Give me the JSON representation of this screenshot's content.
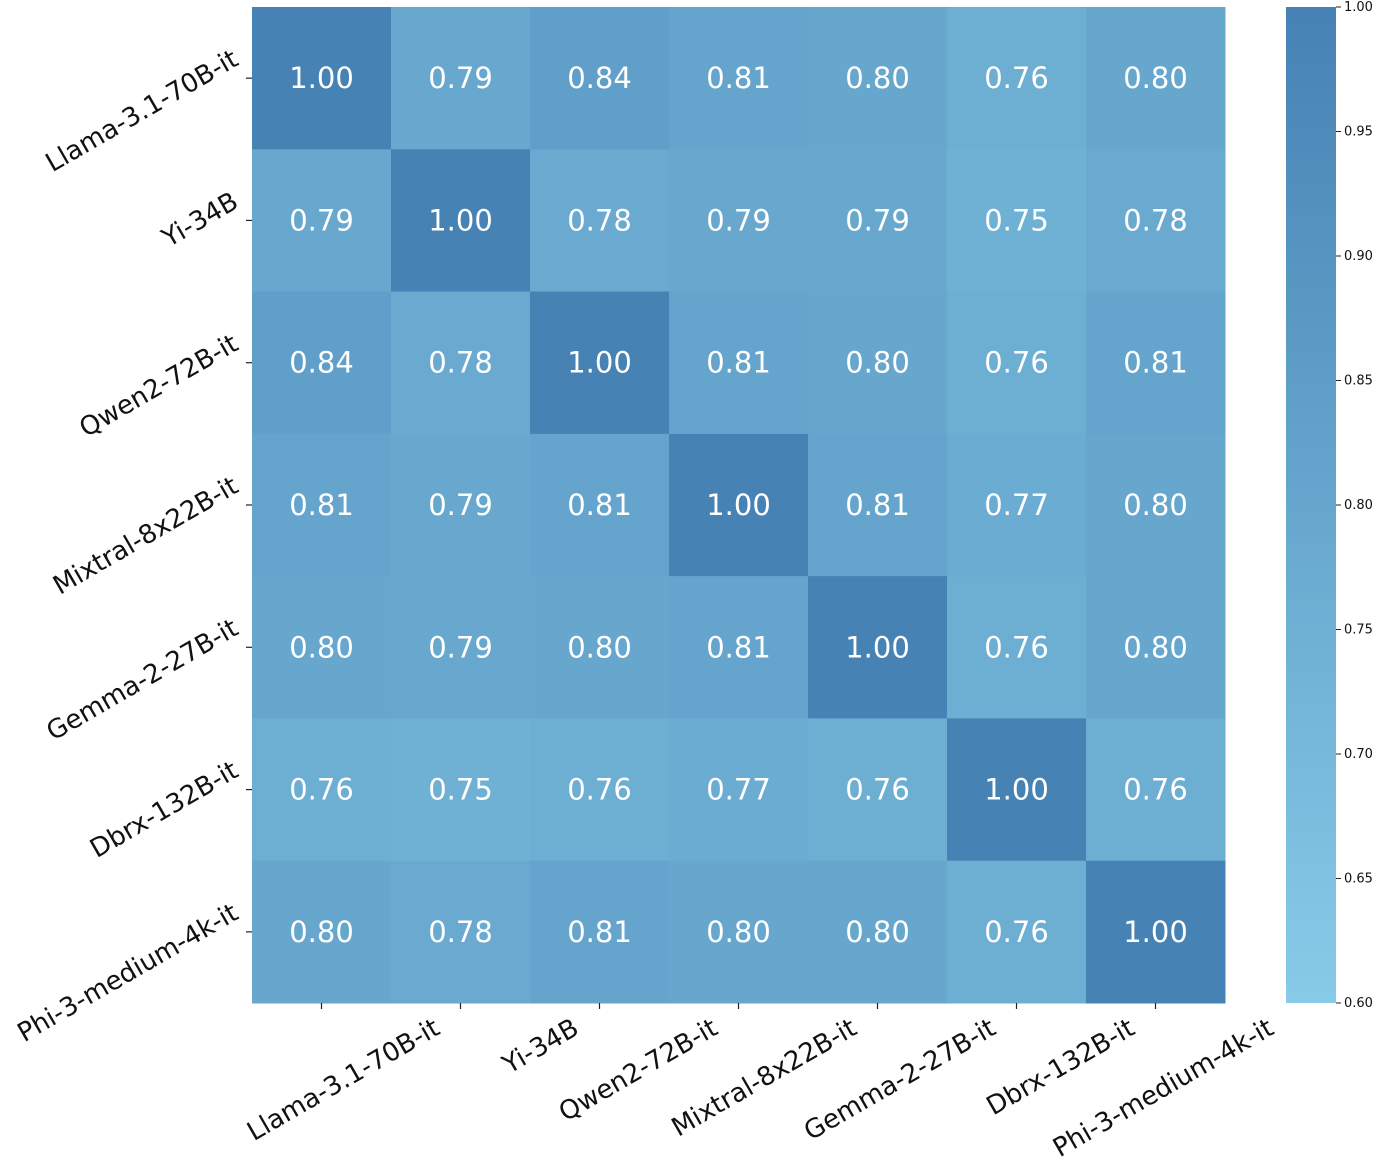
{
  "chart_data": {
    "type": "heatmap",
    "title": "",
    "xlabel": "",
    "ylabel": "",
    "rows": [
      "Llama-3.1-70B-it",
      "Yi-34B",
      "Qwen2-72B-it",
      "Mixtral-8x22B-it",
      "Gemma-2-27B-it",
      "Dbrx-132B-it",
      "Phi-3-medium-4k-it"
    ],
    "cols": [
      "Llama-3.1-70B-it",
      "Yi-34B",
      "Qwen2-72B-it",
      "Mixtral-8x22B-it",
      "Gemma-2-27B-it",
      "Dbrx-132B-it",
      "Phi-3-medium-4k-it"
    ],
    "values": [
      [
        1.0,
        0.79,
        0.84,
        0.81,
        0.8,
        0.76,
        0.8
      ],
      [
        0.79,
        1.0,
        0.78,
        0.79,
        0.79,
        0.75,
        0.78
      ],
      [
        0.84,
        0.78,
        1.0,
        0.81,
        0.8,
        0.76,
        0.81
      ],
      [
        0.81,
        0.79,
        0.81,
        1.0,
        0.81,
        0.77,
        0.8
      ],
      [
        0.8,
        0.79,
        0.8,
        0.81,
        1.0,
        0.76,
        0.8
      ],
      [
        0.76,
        0.75,
        0.76,
        0.77,
        0.76,
        1.0,
        0.76
      ],
      [
        0.8,
        0.78,
        0.81,
        0.8,
        0.8,
        0.76,
        1.0
      ]
    ],
    "value_format": "0.00",
    "colorbar": {
      "range": [
        0.6,
        1.0
      ],
      "ticks": [
        "1.00",
        "0.95",
        "0.90",
        "0.85",
        "0.80",
        "0.75",
        "0.70",
        "0.65",
        "0.60"
      ],
      "color_low": "#87cbe8",
      "color_high": "#4682b4"
    },
    "annotation_color": "#ffffff"
  }
}
